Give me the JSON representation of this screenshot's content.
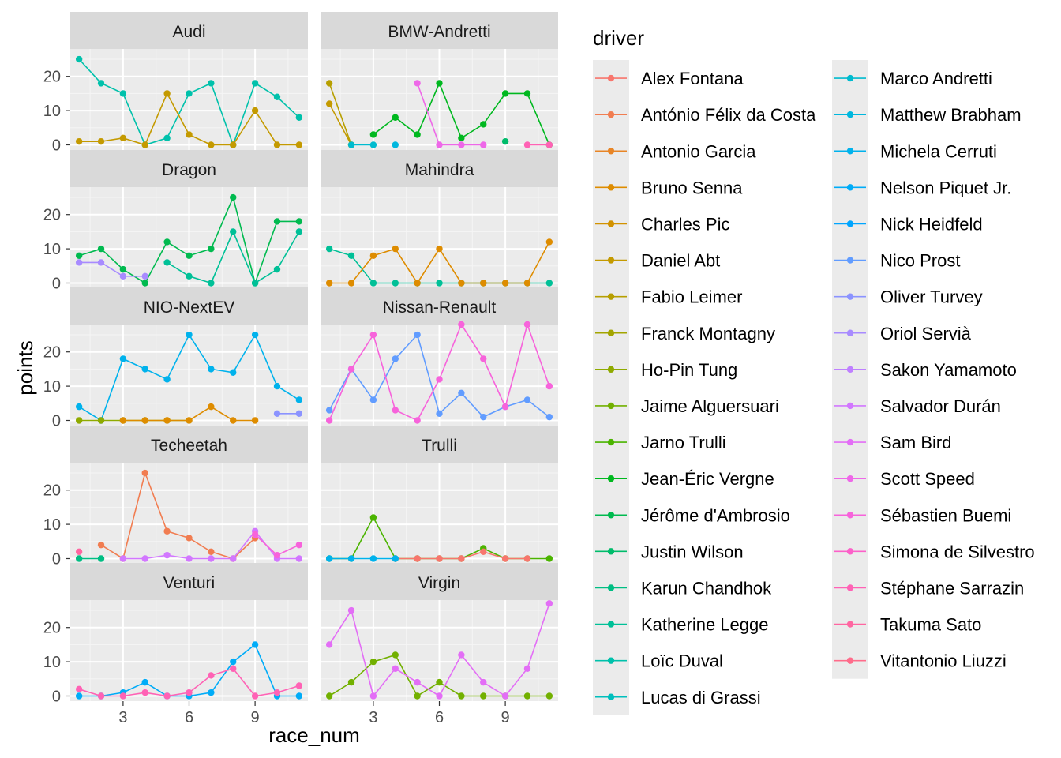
{
  "chart_data": {
    "type": "line",
    "xlabel": "race_num",
    "ylabel": "points",
    "x_ticks": [
      3,
      6,
      9
    ],
    "y_ticks": [
      0,
      10,
      20
    ],
    "xlim": [
      0.6,
      11.4
    ],
    "ylim": [
      -1.5,
      28
    ],
    "legend_title": "driver",
    "legend_position": "right",
    "drivers": [
      {
        "name": "Alex Fontana",
        "color": "#F8766D"
      },
      {
        "name": "António Félix da Costa",
        "color": "#F17D51"
      },
      {
        "name": "Antonio Garcia",
        "color": "#E88526"
      },
      {
        "name": "Bruno Senna",
        "color": "#DE8C00"
      },
      {
        "name": "Charles Pic",
        "color": "#D29200"
      },
      {
        "name": "Daniel Abt",
        "color": "#C49A00"
      },
      {
        "name": "Fabio Leimer",
        "color": "#B79F00"
      },
      {
        "name": "Franck Montagny",
        "color": "#A3A500"
      },
      {
        "name": "Ho-Pin Tung",
        "color": "#8FAA00"
      },
      {
        "name": "Jaime Alguersuari",
        "color": "#72B000"
      },
      {
        "name": "Jarno Trulli",
        "color": "#4BB400"
      },
      {
        "name": "Jean-Éric Vergne",
        "color": "#00B81F"
      },
      {
        "name": "Jérôme d'Ambrosio",
        "color": "#00BA4F"
      },
      {
        "name": "Justin Wilson",
        "color": "#00BC6B"
      },
      {
        "name": "Karun Chandhok",
        "color": "#00BE83"
      },
      {
        "name": "Katherine Legge",
        "color": "#00C097"
      },
      {
        "name": "Loïc Duval",
        "color": "#00C1AB"
      },
      {
        "name": "Lucas di Grassi",
        "color": "#00BFBD"
      },
      {
        "name": "Marco Andretti",
        "color": "#00BBCF"
      },
      {
        "name": "Matthew Brabham",
        "color": "#00B7DE"
      },
      {
        "name": "Michela Cerruti",
        "color": "#00B2EC"
      },
      {
        "name": "Nelson Piquet Jr.",
        "color": "#00ACF8"
      },
      {
        "name": "Nick Heidfeld",
        "color": "#00A5FF"
      },
      {
        "name": "Nico Prost",
        "color": "#619CFF"
      },
      {
        "name": "Oliver Turvey",
        "color": "#8B93FF"
      },
      {
        "name": "Oriol Servià",
        "color": "#A88BFF"
      },
      {
        "name": "Sakon Yamamoto",
        "color": "#BF80FF"
      },
      {
        "name": "Salvador Durán",
        "color": "#D277FF"
      },
      {
        "name": "Sam Bird",
        "color": "#E36EF6"
      },
      {
        "name": "Scott Speed",
        "color": "#EE68E8"
      },
      {
        "name": "Sébastien Buemi",
        "color": "#F763DB"
      },
      {
        "name": "Simona de Silvestro",
        "color": "#FC60C9"
      },
      {
        "name": "Stéphane Sarrazin",
        "color": "#FF62B5"
      },
      {
        "name": "Takuma Sato",
        "color": "#FF66A1"
      },
      {
        "name": "Vitantonio Liuzzi",
        "color": "#FF6C8B"
      }
    ],
    "panels": [
      {
        "title": "Audi",
        "series": [
          {
            "color": "#00C1AB",
            "x": [
              1,
              2,
              3,
              4,
              5,
              6,
              7,
              8,
              9,
              10,
              11
            ],
            "y": [
              25,
              18,
              15,
              0,
              2,
              15,
              18,
              0,
              18,
              14,
              8
            ]
          },
          {
            "color": "#C49A00",
            "x": [
              1,
              2,
              3,
              4,
              5,
              6,
              7,
              8,
              9,
              10,
              11
            ],
            "y": [
              1,
              1,
              2,
              0,
              15,
              3,
              0,
              0,
              10,
              0,
              0
            ]
          }
        ]
      },
      {
        "title": "BMW-Andretti",
        "series": [
          {
            "color": "#C49A00",
            "x": [
              1,
              2
            ],
            "y": [
              12,
              0
            ]
          },
          {
            "color": "#B79F00",
            "x": [
              1,
              2
            ],
            "y": [
              18,
              0
            ]
          },
          {
            "color": "#00B81F",
            "x": [
              3,
              4,
              5,
              6,
              7,
              8,
              9,
              10,
              11
            ],
            "y": [
              3,
              8,
              3,
              18,
              2,
              6,
              15,
              15,
              0
            ]
          },
          {
            "color": "#00BBCF",
            "x": [
              2,
              3
            ],
            "y": [
              0,
              0
            ]
          },
          {
            "color": "#00B7DE",
            "x": [
              4
            ],
            "y": [
              0
            ]
          },
          {
            "color": "#00BC6B",
            "x": [
              9
            ],
            "y": [
              1
            ]
          },
          {
            "color": "#EE68E8",
            "x": [
              5,
              6,
              7,
              8
            ],
            "y": [
              18,
              0,
              0,
              0
            ]
          },
          {
            "color": "#FF62B5",
            "x": [
              10,
              11
            ],
            "y": [
              0,
              0
            ]
          }
        ]
      },
      {
        "title": "Dragon",
        "series": [
          {
            "color": "#00BA4F",
            "x": [
              1,
              2,
              3,
              4,
              5,
              6,
              7,
              8,
              9,
              10,
              11
            ],
            "y": [
              8,
              10,
              4,
              0,
              12,
              8,
              10,
              25,
              0,
              18,
              18
            ]
          },
          {
            "color": "#00C097",
            "x": [
              5,
              6,
              7,
              8,
              9,
              10,
              11
            ],
            "y": [
              6,
              2,
              0,
              15,
              0,
              4,
              15
            ]
          },
          {
            "color": "#A88BFF",
            "x": [
              1,
              2,
              3,
              4
            ],
            "y": [
              6,
              6,
              2,
              2
            ]
          }
        ]
      },
      {
        "title": "Mahindra",
        "series": [
          {
            "color": "#00C097",
            "x": [
              1,
              2,
              3,
              4,
              5,
              6,
              7,
              8,
              9,
              10,
              11
            ],
            "y": [
              10,
              8,
              0,
              0,
              0,
              0,
              0,
              0,
              0,
              0,
              0
            ]
          },
          {
            "color": "#DE8C00",
            "x": [
              1,
              2,
              3,
              4,
              5,
              6,
              7,
              8,
              9,
              10,
              11
            ],
            "y": [
              0,
              0,
              8,
              10,
              0,
              10,
              0,
              0,
              0,
              0,
              12
            ]
          }
        ]
      },
      {
        "title": "NIO-NextEV",
        "series": [
          {
            "color": "#00B2EC",
            "x": [
              1,
              2,
              3,
              4,
              5,
              6,
              7,
              8,
              9,
              10,
              11
            ],
            "y": [
              4,
              0,
              18,
              15,
              12,
              25,
              15,
              14,
              25,
              10,
              6
            ]
          },
          {
            "color": "#8FAA00",
            "x": [
              1,
              2,
              3,
              4,
              5,
              6
            ],
            "y": [
              0,
              0,
              0,
              0,
              0,
              0
            ]
          },
          {
            "color": "#DE8C00",
            "x": [
              3,
              4,
              5,
              6,
              7,
              8,
              9
            ],
            "y": [
              0,
              0,
              0,
              0,
              4,
              0,
              0
            ]
          },
          {
            "color": "#8B93FF",
            "x": [
              10,
              11
            ],
            "y": [
              2,
              2
            ]
          }
        ]
      },
      {
        "title": "Nissan-Renault",
        "series": [
          {
            "color": "#619CFF",
            "x": [
              1,
              2,
              3,
              4,
              5,
              6,
              7,
              8,
              9,
              10,
              11
            ],
            "y": [
              3,
              15,
              6,
              18,
              25,
              2,
              8,
              1,
              4,
              6,
              1
            ]
          },
          {
            "color": "#F763DB",
            "x": [
              1,
              2,
              3,
              4,
              5,
              6,
              7,
              8,
              9,
              10,
              11
            ],
            "y": [
              0,
              15,
              25,
              3,
              0,
              12,
              28,
              18,
              4,
              28,
              10
            ]
          }
        ]
      },
      {
        "title": "Techeetah",
        "series": [
          {
            "color": "#F17D51",
            "x": [
              2,
              3,
              4,
              5,
              6,
              7,
              8,
              9
            ],
            "y": [
              4,
              0,
              25,
              8,
              6,
              2,
              0,
              6
            ]
          },
          {
            "color": "#FF66A1",
            "x": [
              1
            ],
            "y": [
              2
            ]
          },
          {
            "color": "#00BE83",
            "x": [
              1,
              2
            ],
            "y": [
              0,
              0
            ]
          },
          {
            "color": "#D277FF",
            "x": [
              3,
              4,
              5,
              6,
              7,
              8,
              9,
              10,
              11
            ],
            "y": [
              0,
              0,
              1,
              0,
              0,
              0,
              8,
              0,
              0
            ]
          },
          {
            "color": "#F763DB",
            "x": [
              9,
              10,
              11
            ],
            "y": [
              7,
              1,
              4
            ]
          }
        ]
      },
      {
        "title": "Trulli",
        "series": [
          {
            "color": "#4BB400",
            "x": [
              1,
              2,
              3,
              4,
              5,
              6,
              7,
              8,
              9,
              10,
              11
            ],
            "y": [
              0,
              0,
              12,
              0,
              0,
              0,
              0,
              3,
              0,
              0,
              0
            ]
          },
          {
            "color": "#F8766D",
            "x": [
              4,
              5,
              6,
              7,
              8,
              9,
              10
            ],
            "y": [
              0,
              0,
              0,
              0,
              2,
              0,
              0
            ]
          },
          {
            "color": "#00B2EC",
            "x": [
              1,
              2,
              3,
              4
            ],
            "y": [
              0,
              0,
              0,
              0
            ]
          }
        ]
      },
      {
        "title": "Venturi",
        "series": [
          {
            "color": "#00ACF8",
            "x": [
              1,
              2,
              3,
              4,
              5,
              6,
              7,
              8,
              9,
              10,
              11
            ],
            "y": [
              0,
              0,
              1,
              4,
              0,
              0,
              1,
              10,
              15,
              0,
              0
            ]
          },
          {
            "color": "#FF62B5",
            "x": [
              1,
              2,
              3,
              4,
              5,
              6,
              7,
              8,
              9,
              10,
              11
            ],
            "y": [
              2,
              0,
              0,
              1,
              0,
              1,
              6,
              8,
              0,
              1,
              3
            ]
          }
        ]
      },
      {
        "title": "Virgin",
        "series": [
          {
            "color": "#72B000",
            "x": [
              1,
              2,
              3,
              4,
              5,
              6,
              7,
              8,
              9,
              10,
              11
            ],
            "y": [
              0,
              4,
              10,
              12,
              0,
              4,
              0,
              0,
              0,
              0,
              0
            ]
          },
          {
            "color": "#E36EF6",
            "x": [
              1,
              2,
              3,
              4,
              5,
              6,
              7,
              8,
              9,
              10,
              11
            ],
            "y": [
              15,
              25,
              0,
              8,
              4,
              0,
              12,
              4,
              0,
              8,
              27
            ]
          }
        ]
      }
    ]
  }
}
